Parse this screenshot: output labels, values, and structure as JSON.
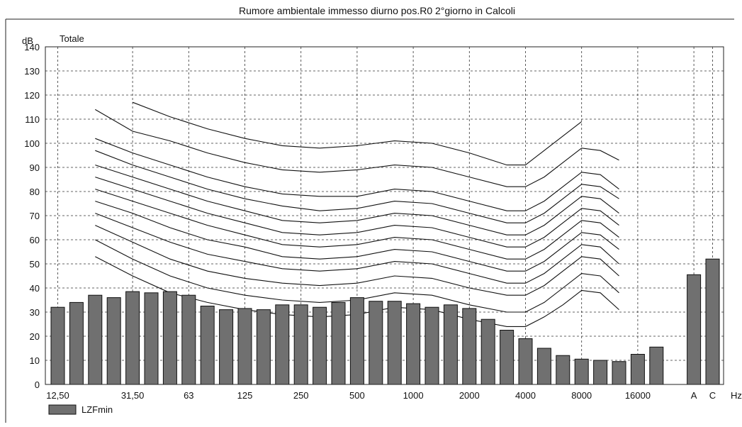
{
  "chart_data": {
    "type": "bar",
    "title": "Rumore ambientale immesso diurno pos.R0 2°giorno in Calcoli",
    "ylabel": "dB",
    "y_title_right": "Totale",
    "x_unit": "Hz",
    "ylim": [
      0,
      140
    ],
    "yticks": [
      0,
      10,
      20,
      30,
      40,
      50,
      60,
      70,
      80,
      90,
      100,
      110,
      120,
      130,
      140
    ],
    "grid": true,
    "legend_position": "bottom-left",
    "x_tick_labels": [
      "12,50",
      "31,50",
      "63",
      "125",
      "250",
      "500",
      "1000",
      "2000",
      "4000",
      "8000",
      "16000",
      "A",
      "C"
    ],
    "x_tick_positions": [
      0,
      4,
      7,
      10,
      13,
      16,
      19,
      22,
      25,
      28,
      31,
      34,
      35
    ],
    "series": [
      {
        "name": "LZFmin",
        "color": "#707070",
        "values": [
          32,
          34,
          37,
          36,
          38.5,
          38,
          38.5,
          37,
          32.5,
          31,
          31.5,
          31,
          33,
          33,
          32,
          34,
          36,
          34.5,
          34.5,
          33.5,
          32,
          33,
          31.5,
          27,
          22.5,
          19,
          15,
          12,
          10.5,
          10,
          9.5,
          12.5,
          15.5,
          45.5,
          52
        ]
      }
    ],
    "bar_slots": [
      0,
      1,
      2,
      3,
      4,
      5,
      6,
      7,
      8,
      9,
      10,
      11,
      12,
      13,
      14,
      15,
      16,
      17,
      18,
      19,
      20,
      21,
      22,
      23,
      24,
      25,
      26,
      27,
      28,
      29,
      30,
      31,
      32,
      34,
      35
    ],
    "reference_curves": {
      "slots": [
        2,
        4,
        6,
        8,
        10,
        12,
        14,
        16,
        18,
        20,
        22,
        24,
        25,
        26,
        27,
        28,
        29,
        30
      ],
      "curves": [
        [
          null,
          117,
          111,
          106,
          102,
          99,
          98,
          99,
          101,
          100,
          96,
          91,
          91,
          97,
          103,
          109,
          null,
          null
        ],
        [
          114,
          105,
          101,
          96,
          92,
          89,
          88,
          89,
          91,
          90,
          86,
          82,
          82,
          86,
          92,
          98,
          97,
          93
        ],
        [
          102,
          96,
          91,
          86,
          82,
          79,
          78,
          78,
          81,
          80,
          76,
          72,
          72,
          76,
          82,
          88,
          87,
          81
        ],
        [
          97,
          91,
          86,
          81,
          77,
          74,
          72,
          73,
          76,
          75,
          71,
          67,
          67,
          71,
          77,
          83,
          82,
          77
        ],
        [
          91,
          86,
          81,
          76,
          72,
          68,
          67,
          68,
          71,
          70,
          66,
          62,
          62,
          66,
          72,
          78,
          77,
          71
        ],
        [
          86,
          81,
          76,
          71,
          67,
          63,
          62,
          63,
          66,
          65,
          61,
          57,
          57,
          61,
          67,
          73,
          72,
          66
        ],
        [
          81,
          76,
          71,
          66,
          62,
          58,
          57,
          58,
          61,
          60,
          56,
          52,
          52,
          56,
          62,
          68,
          67,
          61
        ],
        [
          76,
          71,
          65,
          60,
          57,
          53,
          52,
          53,
          56,
          55,
          51,
          47,
          47,
          51,
          57,
          63,
          62,
          56
        ],
        [
          71,
          65,
          59,
          54,
          51,
          48,
          47,
          48,
          51,
          50,
          46,
          42,
          42,
          46,
          52,
          58,
          57,
          50
        ],
        [
          66,
          59,
          52,
          47,
          44,
          42,
          41,
          42,
          45,
          44,
          40,
          37,
          37,
          41,
          47,
          53,
          52,
          45
        ],
        [
          60,
          52,
          45,
          40,
          37,
          35,
          34,
          35,
          38,
          37,
          33,
          30,
          30,
          34,
          40,
          46,
          45,
          38
        ],
        [
          53,
          45,
          38,
          34,
          31,
          29,
          28,
          29,
          32,
          31,
          27,
          24,
          24,
          28,
          33,
          39,
          38,
          31
        ]
      ]
    }
  },
  "legend": {
    "label": "LZFmin"
  }
}
